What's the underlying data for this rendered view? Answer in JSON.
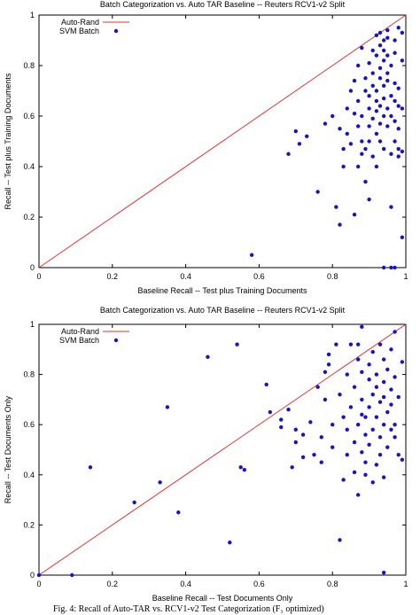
{
  "caption": "Fig. 4: Recall of Auto-TAR vs. RCV1-v2 Test Categorization (F₁ optimized)",
  "colors": {
    "reference": "#e8302e",
    "points": "#1414d0",
    "axes": "#000000"
  },
  "chart_data": [
    {
      "type": "scatter",
      "title": "Batch Categorization vs. Auto TAR Baseline -- Reuters RCV1-v2 Split",
      "xlabel": "Baseline Recall -- Test plus Training Documents",
      "ylabel": "Recall -- Test plus Training Documents",
      "xlim": [
        0,
        1
      ],
      "ylim": [
        0,
        1
      ],
      "xticks": [
        "0",
        "0.2",
        "0.4",
        "0.6",
        "0.8",
        "1"
      ],
      "yticks": [
        "0",
        "0.2",
        "0.4",
        "0.6",
        "0.8",
        "1"
      ],
      "legend_position": "top-left",
      "grid": false,
      "series": [
        {
          "name": "Auto-Rand",
          "kind": "line",
          "x": [
            0,
            1
          ],
          "y": [
            0,
            1
          ]
        },
        {
          "name": "SVM Batch",
          "kind": "points",
          "points": [
            [
              0.58,
              0.05
            ],
            [
              0.68,
              0.45
            ],
            [
              0.7,
              0.54
            ],
            [
              0.71,
              0.49
            ],
            [
              0.73,
              0.52
            ],
            [
              0.76,
              0.3
            ],
            [
              0.78,
              0.57
            ],
            [
              0.8,
              0.6
            ],
            [
              0.81,
              0.24
            ],
            [
              0.82,
              0.55
            ],
            [
              0.82,
              0.17
            ],
            [
              0.83,
              0.4
            ],
            [
              0.83,
              0.47
            ],
            [
              0.84,
              0.53
            ],
            [
              0.84,
              0.63
            ],
            [
              0.85,
              0.49
            ],
            [
              0.85,
              0.7
            ],
            [
              0.86,
              0.74
            ],
            [
              0.86,
              0.21
            ],
            [
              0.86,
              0.61
            ],
            [
              0.87,
              0.4
            ],
            [
              0.87,
              0.56
            ],
            [
              0.87,
              0.66
            ],
            [
              0.87,
              0.8
            ],
            [
              0.88,
              0.5
            ],
            [
              0.88,
              0.45
            ],
            [
              0.88,
              0.6
            ],
            [
              0.88,
              0.87
            ],
            [
              0.89,
              0.34
            ],
            [
              0.89,
              0.47
            ],
            [
              0.89,
              0.7
            ],
            [
              0.89,
              0.75
            ],
            [
              0.9,
              0.5
            ],
            [
              0.9,
              0.56
            ],
            [
              0.9,
              0.63
            ],
            [
              0.9,
              0.68
            ],
            [
              0.9,
              0.81
            ],
            [
              0.9,
              0.27
            ],
            [
              0.91,
              0.59
            ],
            [
              0.91,
              0.44
            ],
            [
              0.91,
              0.72
            ],
            [
              0.91,
              0.86
            ],
            [
              0.91,
              0.77
            ],
            [
              0.92,
              0.53
            ],
            [
              0.92,
              0.62
            ],
            [
              0.92,
              0.66
            ],
            [
              0.92,
              0.7
            ],
            [
              0.92,
              0.84
            ],
            [
              0.92,
              0.92
            ],
            [
              0.92,
              0.4
            ],
            [
              0.93,
              0.5
            ],
            [
              0.93,
              0.57
            ],
            [
              0.93,
              0.64
            ],
            [
              0.93,
              0.75
            ],
            [
              0.93,
              0.79
            ],
            [
              0.93,
              0.88
            ],
            [
              0.93,
              0.93
            ],
            [
              0.94,
              0.6
            ],
            [
              0.94,
              0.67
            ],
            [
              0.94,
              0.72
            ],
            [
              0.94,
              0.82
            ],
            [
              0.94,
              0.86
            ],
            [
              0.94,
              0.9
            ],
            [
              0.94,
              0.47
            ],
            [
              0.94,
              0.0
            ],
            [
              0.95,
              0.56
            ],
            [
              0.95,
              0.63
            ],
            [
              0.95,
              0.74
            ],
            [
              0.95,
              0.77
            ],
            [
              0.95,
              0.84
            ],
            [
              0.95,
              0.91
            ],
            [
              0.95,
              0.94
            ],
            [
              0.96,
              0.6
            ],
            [
              0.96,
              0.68
            ],
            [
              0.96,
              0.8
            ],
            [
              0.96,
              0.24
            ],
            [
              0.96,
              0.45
            ],
            [
              0.96,
              0.0
            ],
            [
              0.97,
              0.5
            ],
            [
              0.97,
              0.66
            ],
            [
              0.97,
              0.73
            ],
            [
              0.97,
              0.85
            ],
            [
              0.97,
              0.9
            ],
            [
              0.97,
              0.58
            ],
            [
              0.98,
              0.47
            ],
            [
              0.98,
              0.55
            ],
            [
              0.98,
              0.64
            ],
            [
              0.98,
              0.71
            ],
            [
              0.98,
              0.95
            ],
            [
              0.98,
              0.44
            ],
            [
              0.99,
              0.82
            ],
            [
              0.99,
              0.63
            ],
            [
              0.99,
              0.93
            ],
            [
              0.99,
              0.46
            ],
            [
              0.99,
              0.12
            ],
            [
              0.97,
              0.0
            ]
          ]
        }
      ]
    },
    {
      "type": "scatter",
      "title": "Batch Categorization vs. Auto TAR Baseline -- Reuters RCV1-v2 Split",
      "xlabel": "Baseline Recall -- Test Documents Only",
      "ylabel": "Recall -- Test Documents Only",
      "xlim": [
        0,
        1
      ],
      "ylim": [
        0,
        1
      ],
      "xticks": [
        "0",
        "0.2",
        "0.4",
        "0.6",
        "0.8",
        "1"
      ],
      "yticks": [
        "0",
        "0.2",
        "0.4",
        "0.6",
        "0.8",
        "1"
      ],
      "legend_position": "top-left",
      "grid": false,
      "series": [
        {
          "name": "Auto-Rand",
          "kind": "line",
          "x": [
            0,
            1
          ],
          "y": [
            0,
            1
          ]
        },
        {
          "name": "SVM Batch",
          "kind": "points",
          "points": [
            [
              0,
              0
            ],
            [
              0.09,
              0
            ],
            [
              0.14,
              0.43
            ],
            [
              0.26,
              0.29
            ],
            [
              0.33,
              0.37
            ],
            [
              0.35,
              0.67
            ],
            [
              0.38,
              0.25
            ],
            [
              0.46,
              0.87
            ],
            [
              0.52,
              0.13
            ],
            [
              0.54,
              0.92
            ],
            [
              0.55,
              0.43
            ],
            [
              0.56,
              0.42
            ],
            [
              0.62,
              0.76
            ],
            [
              0.63,
              0.65
            ],
            [
              0.66,
              0.62
            ],
            [
              0.66,
              0.59
            ],
            [
              0.68,
              0.66
            ],
            [
              0.69,
              0.43
            ],
            [
              0.7,
              0.58
            ],
            [
              0.7,
              0.53
            ],
            [
              0.72,
              0.47
            ],
            [
              0.72,
              0.56
            ],
            [
              0.74,
              0.61
            ],
            [
              0.75,
              0.48
            ],
            [
              0.76,
              0.75
            ],
            [
              0.77,
              0.55
            ],
            [
              0.77,
              0.45
            ],
            [
              0.78,
              0.7
            ],
            [
              0.78,
              0.81
            ],
            [
              0.79,
              0.84
            ],
            [
              0.79,
              0.88
            ],
            [
              0.8,
              0.6
            ],
            [
              0.8,
              0.51
            ],
            [
              0.81,
              0.92
            ],
            [
              0.82,
              0.72
            ],
            [
              0.82,
              0.14
            ],
            [
              0.83,
              0.63
            ],
            [
              0.83,
              0.38
            ],
            [
              0.84,
              0.58
            ],
            [
              0.84,
              0.48
            ],
            [
              0.84,
              0.8
            ],
            [
              0.85,
              0.92
            ],
            [
              0.85,
              0.67
            ],
            [
              0.86,
              0.53
            ],
            [
              0.86,
              0.41
            ],
            [
              0.86,
              0.75
            ],
            [
              0.87,
              0.6
            ],
            [
              0.87,
              0.86
            ],
            [
              0.87,
              0.92
            ],
            [
              0.87,
              0.32
            ],
            [
              0.88,
              0.49
            ],
            [
              0.88,
              0.64
            ],
            [
              0.88,
              0.7
            ],
            [
              0.88,
              0.81
            ],
            [
              0.88,
              0.99
            ],
            [
              0.89,
              0.56
            ],
            [
              0.89,
              0.4
            ],
            [
              0.89,
              0.45
            ],
            [
              0.89,
              0.63
            ],
            [
              0.9,
              0.78
            ],
            [
              0.9,
              0.84
            ],
            [
              0.9,
              0.67
            ],
            [
              0.9,
              0.52
            ],
            [
              0.91,
              0.58
            ],
            [
              0.91,
              0.72
            ],
            [
              0.91,
              0.37
            ],
            [
              0.91,
              0.89
            ],
            [
              0.92,
              0.63
            ],
            [
              0.92,
              0.75
            ],
            [
              0.92,
              0.8
            ],
            [
              0.92,
              0.44
            ],
            [
              0.93,
              0.55
            ],
            [
              0.93,
              0.69
            ],
            [
              0.93,
              0.92
            ],
            [
              0.93,
              0.48
            ],
            [
              0.94,
              0.6
            ],
            [
              0.94,
              0.71
            ],
            [
              0.94,
              0.77
            ],
            [
              0.94,
              0.86
            ],
            [
              0.94,
              0.39
            ],
            [
              0.94,
              0.01
            ],
            [
              0.95,
              0.65
            ],
            [
              0.95,
              0.82
            ],
            [
              0.95,
              0.51
            ],
            [
              0.96,
              0.58
            ],
            [
              0.96,
              0.74
            ],
            [
              0.96,
              0.9
            ],
            [
              0.96,
              0.68
            ],
            [
              0.97,
              0.6
            ],
            [
              0.97,
              0.79
            ],
            [
              0.97,
              0.55
            ],
            [
              0.97,
              0.97
            ],
            [
              0.98,
              0.48
            ],
            [
              0.98,
              0.71
            ],
            [
              0.99,
              0.46
            ],
            [
              0.99,
              0.85
            ]
          ]
        }
      ]
    }
  ]
}
